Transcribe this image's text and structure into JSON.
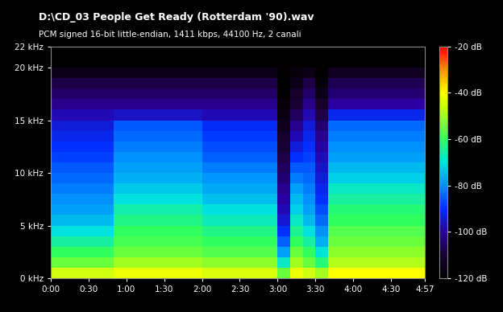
{
  "chart_data": {
    "type": "heatmap",
    "title": "D:\\CD_03 People Get Ready (Rotterdam '90).wav",
    "subtitle": "PCM signed 16-bit little-endian, 1411 kbps, 44100 Hz, 2 canali",
    "time_edges": [
      0,
      10,
      20,
      30,
      40,
      50,
      60,
      70,
      80,
      90,
      100,
      110,
      120,
      130,
      140,
      150,
      160,
      170,
      180,
      190,
      200,
      210,
      220,
      230,
      240,
      250,
      260,
      270,
      280,
      290,
      297
    ],
    "freq_edges": [
      0,
      1,
      2,
      3,
      4,
      5,
      6,
      7,
      8,
      9,
      10,
      11,
      12,
      13,
      14,
      15,
      16,
      17,
      18,
      19,
      20,
      21,
      22
    ],
    "cells": [
      [
        -45,
        -55,
        -60,
        -65,
        -70,
        -75,
        -78,
        -80,
        -82,
        -84,
        -86,
        -88,
        -90,
        -92,
        -94,
        -98,
        -102,
        -105,
        -108,
        -115,
        -120,
        -120
      ],
      [
        -45,
        -55,
        -60,
        -65,
        -70,
        -75,
        -78,
        -80,
        -82,
        -84,
        -86,
        -88,
        -90,
        -92,
        -94,
        -98,
        -102,
        -105,
        -108,
        -115,
        -120,
        -120
      ],
      [
        -45,
        -55,
        -60,
        -65,
        -70,
        -75,
        -78,
        -80,
        -82,
        -84,
        -86,
        -88,
        -90,
        -92,
        -94,
        -98,
        -102,
        -105,
        -108,
        -115,
        -120,
        -120
      ],
      [
        -45,
        -55,
        -60,
        -65,
        -70,
        -75,
        -78,
        -80,
        -82,
        -84,
        -86,
        -88,
        -90,
        -92,
        -94,
        -98,
        -102,
        -105,
        -108,
        -115,
        -120,
        -120
      ],
      [
        -45,
        -55,
        -60,
        -65,
        -70,
        -75,
        -78,
        -80,
        -82,
        -84,
        -86,
        -88,
        -90,
        -92,
        -94,
        -98,
        -102,
        -105,
        -108,
        -115,
        -120,
        -120
      ],
      [
        -42,
        -50,
        -55,
        -58,
        -60,
        -63,
        -66,
        -70,
        -73,
        -76,
        -78,
        -80,
        -82,
        -84,
        -86,
        -96,
        -102,
        -105,
        -108,
        -115,
        -120,
        -120
      ],
      [
        -42,
        -50,
        -55,
        -58,
        -60,
        -63,
        -66,
        -70,
        -73,
        -76,
        -78,
        -80,
        -82,
        -84,
        -86,
        -96,
        -102,
        -105,
        -108,
        -115,
        -120,
        -120
      ],
      [
        -42,
        -50,
        -55,
        -58,
        -60,
        -63,
        -66,
        -70,
        -73,
        -76,
        -78,
        -80,
        -82,
        -84,
        -86,
        -96,
        -102,
        -105,
        -108,
        -115,
        -120,
        -120
      ],
      [
        -42,
        -50,
        -55,
        -58,
        -60,
        -63,
        -66,
        -70,
        -73,
        -76,
        -78,
        -80,
        -82,
        -84,
        -86,
        -96,
        -102,
        -105,
        -108,
        -115,
        -120,
        -120
      ],
      [
        -42,
        -50,
        -55,
        -58,
        -60,
        -63,
        -66,
        -70,
        -73,
        -76,
        -78,
        -80,
        -82,
        -84,
        -86,
        -96,
        -102,
        -105,
        -108,
        -115,
        -120,
        -120
      ],
      [
        -42,
        -50,
        -55,
        -58,
        -60,
        -63,
        -66,
        -70,
        -73,
        -76,
        -78,
        -80,
        -82,
        -84,
        -86,
        -96,
        -102,
        -105,
        -108,
        -115,
        -120,
        -120
      ],
      [
        -42,
        -50,
        -55,
        -58,
        -60,
        -63,
        -66,
        -70,
        -73,
        -76,
        -78,
        -80,
        -82,
        -84,
        -86,
        -96,
        -102,
        -105,
        -108,
        -115,
        -120,
        -120
      ],
      [
        -44,
        -52,
        -57,
        -60,
        -63,
        -67,
        -70,
        -74,
        -77,
        -79,
        -82,
        -85,
        -87,
        -89,
        -91,
        -98,
        -102,
        -105,
        -108,
        -115,
        -120,
        -120
      ],
      [
        -44,
        -52,
        -57,
        -60,
        -63,
        -67,
        -70,
        -74,
        -77,
        -79,
        -82,
        -85,
        -87,
        -89,
        -91,
        -98,
        -102,
        -105,
        -108,
        -115,
        -120,
        -120
      ],
      [
        -44,
        -52,
        -57,
        -60,
        -63,
        -67,
        -70,
        -74,
        -77,
        -79,
        -82,
        -85,
        -87,
        -89,
        -91,
        -98,
        -102,
        -105,
        -108,
        -115,
        -120,
        -120
      ],
      [
        -44,
        -52,
        -57,
        -60,
        -63,
        -67,
        -70,
        -74,
        -77,
        -79,
        -82,
        -85,
        -87,
        -89,
        -91,
        -98,
        -102,
        -105,
        -108,
        -115,
        -120,
        -120
      ],
      [
        -44,
        -52,
        -57,
        -60,
        -63,
        -67,
        -70,
        -74,
        -77,
        -79,
        -82,
        -85,
        -87,
        -89,
        -91,
        -98,
        -102,
        -105,
        -108,
        -115,
        -120,
        -120
      ],
      [
        -44,
        -52,
        -57,
        -60,
        -63,
        -67,
        -70,
        -74,
        -77,
        -79,
        -82,
        -85,
        -87,
        -89,
        -91,
        -98,
        -102,
        -105,
        -108,
        -115,
        -120,
        -120
      ],
      [
        -55,
        -68,
        -78,
        -85,
        -90,
        -95,
        -98,
        -100,
        -102,
        -104,
        -106,
        -108,
        -110,
        -112,
        -114,
        -116,
        -118,
        -120,
        -120,
        -120,
        -120,
        -120
      ],
      [
        -42,
        -50,
        -55,
        -60,
        -64,
        -68,
        -72,
        -75,
        -78,
        -82,
        -86,
        -90,
        -94,
        -98,
        -102,
        -106,
        -110,
        -112,
        -115,
        -118,
        -120,
        -120
      ],
      [
        -45,
        -55,
        -60,
        -65,
        -70,
        -75,
        -78,
        -80,
        -82,
        -84,
        -86,
        -88,
        -90,
        -92,
        -94,
        -98,
        -102,
        -105,
        -108,
        -115,
        -120,
        -120
      ],
      [
        -50,
        -62,
        -70,
        -76,
        -80,
        -84,
        -87,
        -90,
        -92,
        -94,
        -96,
        -98,
        -100,
        -102,
        -104,
        -108,
        -112,
        -115,
        -118,
        -120,
        -120,
        -120
      ],
      [
        -40,
        -48,
        -52,
        -55,
        -57,
        -60,
        -62,
        -65,
        -68,
        -72,
        -75,
        -78,
        -80,
        -82,
        -84,
        -92,
        -100,
        -104,
        -107,
        -113,
        -120,
        -120
      ],
      [
        -40,
        -48,
        -52,
        -55,
        -57,
        -60,
        -62,
        -65,
        -68,
        -72,
        -75,
        -78,
        -80,
        -82,
        -84,
        -92,
        -100,
        -104,
        -107,
        -113,
        -120,
        -120
      ],
      [
        -40,
        -48,
        -52,
        -55,
        -57,
        -60,
        -62,
        -65,
        -68,
        -72,
        -75,
        -78,
        -80,
        -82,
        -84,
        -92,
        -100,
        -104,
        -107,
        -113,
        -120,
        -120
      ],
      [
        -40,
        -48,
        -52,
        -55,
        -57,
        -60,
        -62,
        -65,
        -68,
        -72,
        -75,
        -78,
        -80,
        -82,
        -84,
        -92,
        -100,
        -104,
        -107,
        -113,
        -120,
        -120
      ],
      [
        -40,
        -48,
        -52,
        -55,
        -57,
        -60,
        -62,
        -65,
        -68,
        -72,
        -75,
        -78,
        -80,
        -82,
        -84,
        -92,
        -100,
        -104,
        -107,
        -113,
        -120,
        -120
      ],
      [
        -40,
        -48,
        -52,
        -55,
        -57,
        -60,
        -62,
        -65,
        -68,
        -72,
        -75,
        -78,
        -80,
        -82,
        -84,
        -92,
        -100,
        -104,
        -107,
        -113,
        -120,
        -120
      ],
      [
        -40,
        -48,
        -52,
        -55,
        -57,
        -60,
        -62,
        -65,
        -68,
        -72,
        -75,
        -78,
        -80,
        -82,
        -84,
        -92,
        -100,
        -104,
        -107,
        -113,
        -120,
        -120
      ],
      [
        -40,
        -48,
        -52,
        -55,
        -57,
        -60,
        -62,
        -65,
        -68,
        -72,
        -75,
        -78,
        -80,
        -82,
        -84,
        -92,
        -100,
        -104,
        -107,
        -113,
        -120,
        -120
      ]
    ],
    "xlim": [
      0,
      297
    ],
    "xticks": [
      {
        "value": 0,
        "label": "0:00"
      },
      {
        "value": 30,
        "label": "0:30"
      },
      {
        "value": 60,
        "label": "1:00"
      },
      {
        "value": 90,
        "label": "1:30"
      },
      {
        "value": 120,
        "label": "2:00"
      },
      {
        "value": 150,
        "label": "2:30"
      },
      {
        "value": 180,
        "label": "3:00"
      },
      {
        "value": 210,
        "label": "3:30"
      },
      {
        "value": 240,
        "label": "4:00"
      },
      {
        "value": 270,
        "label": "4:30"
      },
      {
        "value": 297,
        "label": "4:57"
      }
    ],
    "ylim": [
      0,
      22
    ],
    "yticks": [
      {
        "value": 0,
        "label": "0 kHz"
      },
      {
        "value": 5,
        "label": "5 kHz"
      },
      {
        "value": 10,
        "label": "10 kHz"
      },
      {
        "value": 15,
        "label": "15 kHz"
      },
      {
        "value": 20,
        "label": "20 kHz"
      },
      {
        "value": 22,
        "label": "22 kHz"
      }
    ],
    "color_range": [
      -120,
      -20
    ],
    "color_ticks": [
      {
        "value": -20,
        "label": "-20 dB"
      },
      {
        "value": -40,
        "label": "-40 dB"
      },
      {
        "value": -60,
        "label": "-60 dB"
      },
      {
        "value": -80,
        "label": "-80 dB"
      },
      {
        "value": -100,
        "label": "-100 dB"
      },
      {
        "value": -120,
        "label": "-120 dB"
      }
    ]
  }
}
